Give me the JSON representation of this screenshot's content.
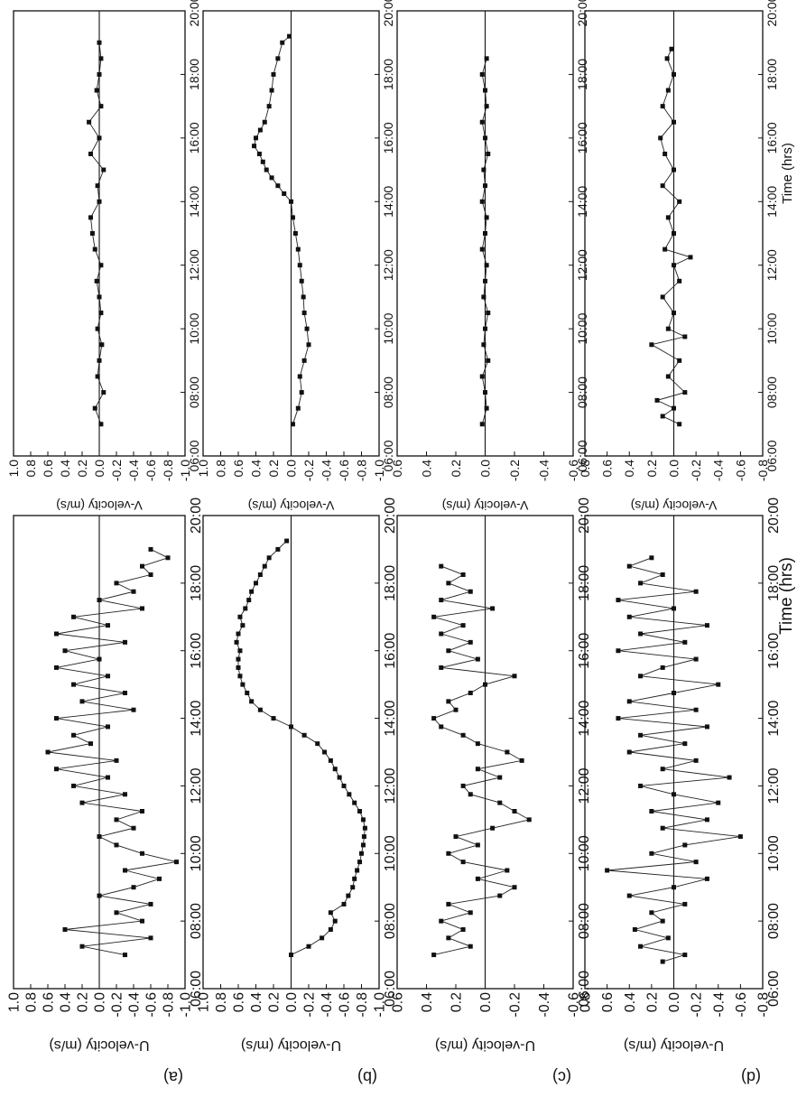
{
  "figure": {
    "time_axis_label": "Time (hrs)",
    "time_ticks": [
      "06:00",
      "08:00",
      "10:00",
      "12:00",
      "14:00",
      "16:00",
      "18:00",
      "20:00"
    ]
  },
  "chart_data": [
    {
      "type": "scatter",
      "panel": "a",
      "component": "U",
      "panel_label": "(a)",
      "ylabel": "U-velocity (m/s)",
      "xlabel": "Time (hrs)",
      "xlim": [
        6,
        20
      ],
      "ylim": [
        -1.0,
        1.0
      ],
      "yticks": [
        "1.0",
        "0.8",
        "0.6",
        "0.4",
        "0.2",
        "0.0",
        "-0.2",
        "-0.4",
        "-0.6",
        "-0.8",
        "-1.0"
      ],
      "zero_line": true,
      "marker": "square",
      "connected": true,
      "x": [
        7.0,
        7.25,
        7.5,
        7.75,
        8.0,
        8.25,
        8.5,
        8.75,
        9.0,
        9.25,
        9.5,
        9.75,
        10.0,
        10.25,
        10.5,
        10.75,
        11.0,
        11.25,
        11.5,
        11.75,
        12.0,
        12.25,
        12.5,
        12.75,
        13.0,
        13.25,
        13.5,
        13.75,
        14.0,
        14.25,
        14.5,
        14.75,
        15.0,
        15.25,
        15.5,
        15.75,
        16.0,
        16.25,
        16.5,
        16.75,
        17.0,
        17.25,
        17.5,
        17.75,
        18.0,
        18.25,
        18.5,
        18.75,
        19.0
      ],
      "y": [
        -0.3,
        0.2,
        -0.6,
        0.4,
        -0.5,
        -0.2,
        -0.6,
        0.0,
        -0.4,
        -0.7,
        -0.3,
        -0.9,
        -0.5,
        -0.2,
        0.0,
        -0.4,
        -0.2,
        -0.5,
        0.2,
        -0.3,
        0.3,
        -0.1,
        0.5,
        -0.2,
        0.6,
        0.1,
        0.3,
        -0.1,
        0.5,
        -0.4,
        0.2,
        -0.3,
        0.3,
        -0.1,
        0.5,
        0.0,
        0.4,
        -0.3,
        0.5,
        -0.1,
        0.3,
        -0.5,
        0.0,
        -0.4,
        -0.2,
        -0.6,
        -0.5,
        -0.8,
        -0.6
      ]
    },
    {
      "type": "scatter",
      "panel": "a",
      "component": "V",
      "ylabel": "V-velocity (m/s)",
      "xlabel": "Time (hrs)",
      "xlim": [
        6,
        20
      ],
      "ylim": [
        -1.0,
        1.0
      ],
      "yticks": [
        "1.0",
        "0.8",
        "0.6",
        "0.4",
        "0.2",
        "0.0",
        "-0.2",
        "-0.4",
        "-0.6",
        "-0.8",
        "-1.0"
      ],
      "zero_line": true,
      "marker": "square",
      "connected": true,
      "x": [
        7.0,
        7.5,
        8.0,
        8.5,
        9.0,
        9.5,
        10.0,
        10.5,
        11.0,
        11.5,
        12.0,
        12.5,
        13.0,
        13.5,
        14.0,
        14.5,
        15.0,
        15.5,
        16.0,
        16.5,
        17.0,
        17.5,
        18.0,
        18.5,
        19.0
      ],
      "y": [
        -0.02,
        0.05,
        -0.05,
        0.02,
        0.0,
        -0.03,
        0.02,
        -0.02,
        0.0,
        0.03,
        -0.02,
        0.05,
        0.08,
        0.1,
        0.0,
        0.02,
        -0.05,
        0.1,
        0.0,
        0.12,
        -0.02,
        0.03,
        0.0,
        -0.02,
        0.0
      ]
    },
    {
      "type": "scatter",
      "panel": "b",
      "component": "U",
      "panel_label": "(b)",
      "ylabel": "U-velocity (m/s)",
      "xlabel": "Time (hrs)",
      "xlim": [
        6,
        20
      ],
      "ylim": [
        -1.0,
        1.0
      ],
      "yticks": [
        "1.0",
        "0.8",
        "0.6",
        "0.4",
        "0.2",
        "0.0",
        "-0.2",
        "-0.4",
        "-0.6",
        "-0.8",
        "-1.0"
      ],
      "zero_line": true,
      "marker": "square",
      "connected": true,
      "x": [
        7.0,
        7.25,
        7.5,
        7.75,
        8.0,
        8.25,
        8.5,
        8.75,
        9.0,
        9.25,
        9.5,
        9.75,
        10.0,
        10.25,
        10.5,
        10.75,
        11.0,
        11.25,
        11.5,
        11.75,
        12.0,
        12.25,
        12.5,
        12.75,
        13.0,
        13.25,
        13.5,
        13.75,
        14.0,
        14.25,
        14.5,
        14.75,
        15.0,
        15.25,
        15.5,
        15.75,
        16.0,
        16.25,
        16.5,
        16.75,
        17.0,
        17.25,
        17.5,
        17.75,
        18.0,
        18.25,
        18.5,
        18.75,
        19.0,
        19.25
      ],
      "y": [
        0.0,
        -0.2,
        -0.35,
        -0.45,
        -0.5,
        -0.45,
        -0.6,
        -0.65,
        -0.7,
        -0.72,
        -0.75,
        -0.78,
        -0.8,
        -0.82,
        -0.83,
        -0.84,
        -0.82,
        -0.78,
        -0.72,
        -0.66,
        -0.6,
        -0.55,
        -0.5,
        -0.45,
        -0.38,
        -0.3,
        -0.15,
        0.0,
        0.2,
        0.35,
        0.45,
        0.5,
        0.55,
        0.58,
        0.6,
        0.6,
        0.58,
        0.62,
        0.6,
        0.55,
        0.58,
        0.52,
        0.48,
        0.45,
        0.4,
        0.35,
        0.3,
        0.25,
        0.15,
        0.05
      ]
    },
    {
      "type": "scatter",
      "panel": "b",
      "component": "V",
      "ylabel": "V-velocity (m/s)",
      "xlabel": "Time (hrs)",
      "xlim": [
        6,
        20
      ],
      "ylim": [
        -1.0,
        1.0
      ],
      "yticks": [
        "1.0",
        "0.8",
        "0.6",
        "0.4",
        "0.2",
        "0.0",
        "-0.2",
        "-0.4",
        "-0.6",
        "-0.8",
        "-1.0"
      ],
      "zero_line": true,
      "marker": "square",
      "connected": true,
      "x": [
        7.0,
        7.5,
        8.0,
        8.5,
        9.0,
        9.5,
        10.0,
        10.5,
        11.0,
        11.5,
        12.0,
        12.5,
        13.0,
        13.5,
        14.0,
        14.25,
        14.5,
        14.75,
        15.0,
        15.25,
        15.5,
        15.75,
        16.0,
        16.25,
        16.5,
        17.0,
        17.5,
        18.0,
        18.5,
        19.0,
        19.2
      ],
      "y": [
        -0.02,
        -0.08,
        -0.12,
        -0.1,
        -0.15,
        -0.2,
        -0.18,
        -0.15,
        -0.14,
        -0.12,
        -0.1,
        -0.08,
        -0.05,
        -0.02,
        0.0,
        0.08,
        0.15,
        0.22,
        0.28,
        0.32,
        0.36,
        0.42,
        0.4,
        0.35,
        0.3,
        0.25,
        0.22,
        0.2,
        0.15,
        0.1,
        0.02
      ]
    },
    {
      "type": "scatter",
      "panel": "c",
      "component": "U",
      "panel_label": "(c)",
      "ylabel": "U-velocity (m/s)",
      "xlabel": "Time (hrs)",
      "xlim": [
        6,
        20
      ],
      "ylim": [
        -0.6,
        0.6
      ],
      "yticks": [
        "0.6",
        "0.4",
        "0.2",
        "0.0",
        "-0.2",
        "-0.4",
        "-0.6"
      ],
      "zero_line": true,
      "marker": "square",
      "connected": true,
      "x": [
        7.0,
        7.25,
        7.5,
        7.75,
        8.0,
        8.25,
        8.5,
        8.75,
        9.0,
        9.25,
        9.5,
        9.75,
        10.0,
        10.25,
        10.5,
        10.75,
        11.0,
        11.25,
        11.5,
        11.75,
        12.0,
        12.25,
        12.5,
        12.75,
        13.0,
        13.25,
        13.5,
        13.75,
        14.0,
        14.25,
        14.5,
        14.75,
        15.0,
        15.25,
        15.5,
        15.75,
        16.0,
        16.25,
        16.5,
        16.75,
        17.0,
        17.25,
        17.5,
        17.75,
        18.0,
        18.25,
        18.5
      ],
      "y": [
        0.35,
        0.1,
        0.25,
        0.15,
        0.3,
        0.1,
        0.25,
        -0.1,
        -0.2,
        0.05,
        -0.15,
        0.15,
        0.25,
        0.05,
        0.2,
        -0.05,
        -0.3,
        -0.2,
        -0.1,
        0.1,
        0.15,
        -0.1,
        0.05,
        -0.25,
        -0.15,
        0.05,
        0.15,
        0.3,
        0.35,
        0.2,
        0.25,
        0.1,
        0.0,
        -0.2,
        0.3,
        0.05,
        0.25,
        0.1,
        0.3,
        0.15,
        0.35,
        -0.05,
        0.3,
        0.1,
        0.25,
        0.15,
        0.3
      ]
    },
    {
      "type": "scatter",
      "panel": "c",
      "component": "V",
      "ylabel": "V-velocity (m/s)",
      "xlabel": "Time (hrs)",
      "xlim": [
        6,
        20
      ],
      "ylim": [
        -0.6,
        0.6
      ],
      "yticks": [
        "0.6",
        "0.4",
        "0.2",
        "0.0",
        "-0.2",
        "-0.4",
        "-0.6"
      ],
      "zero_line": true,
      "marker": "square",
      "connected": true,
      "x": [
        7.0,
        7.5,
        8.0,
        8.5,
        9.0,
        9.5,
        10.0,
        10.5,
        11.0,
        11.5,
        12.0,
        12.5,
        13.0,
        13.5,
        14.0,
        14.5,
        15.0,
        15.5,
        16.0,
        16.5,
        17.0,
        17.5,
        18.0,
        18.5
      ],
      "y": [
        0.02,
        -0.01,
        0.0,
        0.02,
        -0.02,
        0.01,
        0.0,
        -0.02,
        0.01,
        0.0,
        -0.01,
        0.02,
        0.0,
        -0.01,
        0.02,
        0.0,
        0.01,
        -0.02,
        0.0,
        0.02,
        -0.01,
        0.0,
        0.02,
        -0.01
      ]
    },
    {
      "type": "scatter",
      "panel": "d",
      "component": "U",
      "panel_label": "(d)",
      "ylabel": "U-velocity (m/s)",
      "xlabel": "Time (hrs)",
      "xlim": [
        6,
        20
      ],
      "ylim": [
        -0.8,
        0.8
      ],
      "yticks": [
        "0.8",
        "0.6",
        "0.4",
        "0.2",
        "0.0",
        "-0.2",
        "-0.4",
        "-0.6",
        "-0.8"
      ],
      "zero_line": true,
      "marker": "square",
      "connected": true,
      "x": [
        6.8,
        7.0,
        7.25,
        7.5,
        7.75,
        8.0,
        8.25,
        8.5,
        8.75,
        9.0,
        9.25,
        9.5,
        9.75,
        10.0,
        10.25,
        10.5,
        10.75,
        11.0,
        11.25,
        11.5,
        11.75,
        12.0,
        12.25,
        12.5,
        12.75,
        13.0,
        13.25,
        13.5,
        13.75,
        14.0,
        14.25,
        14.5,
        14.75,
        15.0,
        15.25,
        15.5,
        15.75,
        16.0,
        16.25,
        16.5,
        16.75,
        17.0,
        17.25,
        17.5,
        17.75,
        18.0,
        18.25,
        18.5,
        18.75
      ],
      "y": [
        0.1,
        -0.1,
        0.3,
        0.05,
        0.35,
        0.1,
        0.2,
        -0.1,
        0.4,
        0.0,
        -0.3,
        0.6,
        -0.2,
        0.2,
        -0.1,
        -0.6,
        0.1,
        -0.3,
        0.2,
        -0.4,
        0.0,
        0.3,
        -0.5,
        0.1,
        -0.2,
        0.4,
        -0.1,
        0.3,
        -0.3,
        0.5,
        -0.2,
        0.4,
        0.0,
        -0.4,
        0.3,
        0.1,
        -0.2,
        0.5,
        -0.1,
        0.3,
        -0.3,
        0.4,
        0.0,
        0.5,
        -0.2,
        0.3,
        0.1,
        0.4,
        0.2
      ]
    },
    {
      "type": "scatter",
      "panel": "d",
      "component": "V",
      "ylabel": "V-velocity (m/s)",
      "xlabel": "Time (hrs)",
      "xlim": [
        6,
        20
      ],
      "ylim": [
        -0.8,
        0.8
      ],
      "yticks": [
        "0.8",
        "0.6",
        "0.4",
        "0.2",
        "0.0",
        "-0.2",
        "-0.4",
        "-0.6",
        "-0.8"
      ],
      "zero_line": true,
      "marker": "square",
      "connected": true,
      "x": [
        7.0,
        7.25,
        7.5,
        7.75,
        8.0,
        8.5,
        9.0,
        9.5,
        9.75,
        10.0,
        10.5,
        11.0,
        11.5,
        12.0,
        12.25,
        12.5,
        13.0,
        13.5,
        14.0,
        14.5,
        15.0,
        15.5,
        16.0,
        16.5,
        17.0,
        17.5,
        18.0,
        18.5,
        18.8
      ],
      "y": [
        -0.05,
        0.1,
        0.0,
        0.15,
        -0.1,
        0.05,
        -0.05,
        0.2,
        -0.1,
        0.05,
        0.0,
        0.1,
        -0.05,
        0.0,
        -0.15,
        0.08,
        0.0,
        0.05,
        -0.05,
        0.1,
        0.0,
        0.08,
        0.12,
        0.0,
        0.1,
        0.05,
        0.0,
        0.06,
        0.02
      ]
    }
  ]
}
